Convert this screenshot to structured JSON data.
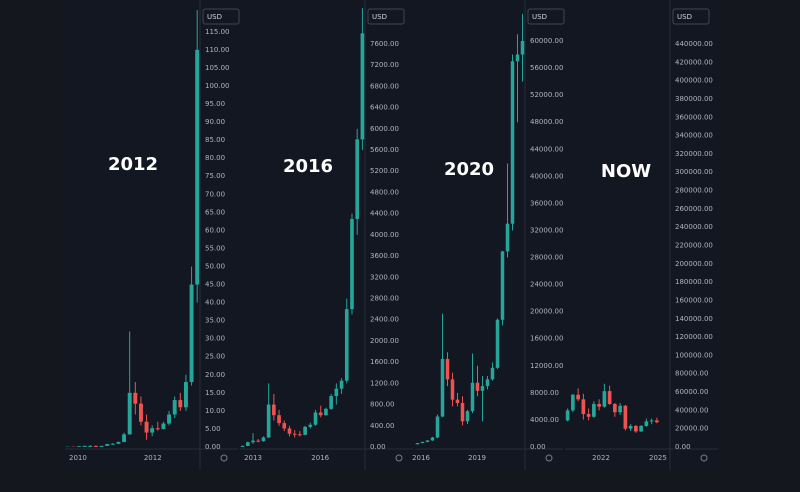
{
  "chart_data": [
    {
      "type": "candlestick",
      "title": "2012",
      "currency": "USD",
      "up_color": "#26a69a",
      "down_color": "#ef5350",
      "categories": [
        null,
        null,
        null,
        null,
        null,
        null,
        null,
        null,
        null,
        null,
        null,
        null,
        null,
        null,
        null,
        null,
        null,
        null,
        null,
        null,
        null,
        null,
        null,
        null
      ],
      "open": [
        0.06,
        0.08,
        0.07,
        0.2,
        0.3,
        0.3,
        0.25,
        0.3,
        0.8,
        0.9,
        1.4,
        3.5,
        15,
        12,
        7,
        4,
        5.2,
        5,
        6.5,
        9,
        13,
        11,
        18,
        45
      ],
      "high": [
        0.1,
        0.1,
        0.3,
        0.4,
        0.5,
        0.4,
        0.35,
        0.9,
        1.1,
        1.5,
        4,
        32,
        18,
        14,
        9,
        6,
        7,
        7,
        10,
        14,
        15,
        20,
        50,
        121
      ],
      "low": [
        0.05,
        0.06,
        0.06,
        0.1,
        0.2,
        0.2,
        0.2,
        0.3,
        0.7,
        0.8,
        1.3,
        3.4,
        9,
        6,
        2,
        3,
        4.5,
        4.8,
        6,
        8,
        10,
        10,
        17,
        40
      ],
      "close": [
        0.08,
        0.07,
        0.2,
        0.3,
        0.3,
        0.25,
        0.3,
        0.8,
        0.9,
        1.4,
        3.5,
        15,
        12,
        7,
        4,
        5.2,
        5,
        6.5,
        9,
        13,
        11,
        18,
        45,
        110
      ],
      "ylim": [
        0,
        121.6
      ],
      "yticks": [
        {
          "value": 0,
          "label": "0.00"
        },
        {
          "value": 5,
          "label": "5.00"
        },
        {
          "value": 10,
          "label": "10.00"
        },
        {
          "value": 15,
          "label": "15.00"
        },
        {
          "value": 20,
          "label": "20.00"
        },
        {
          "value": 25,
          "label": "25.00"
        },
        {
          "value": 30,
          "label": "30.00"
        },
        {
          "value": 35,
          "label": "35.00"
        },
        {
          "value": 40,
          "label": "40.00"
        },
        {
          "value": 45,
          "label": "45.00"
        },
        {
          "value": 50,
          "label": "50.00"
        },
        {
          "value": 55,
          "label": "55.00"
        },
        {
          "value": 60,
          "label": "60.00"
        },
        {
          "value": 65,
          "label": "65.00"
        },
        {
          "value": 70,
          "label": "70.00"
        },
        {
          "value": 75,
          "label": "75.00"
        },
        {
          "value": 80,
          "label": "80.00"
        },
        {
          "value": 85,
          "label": "85.00"
        },
        {
          "value": 90,
          "label": "90.00"
        },
        {
          "value": 95,
          "label": "95.00"
        },
        {
          "value": 100,
          "label": "100.00"
        },
        {
          "value": 105,
          "label": "105.00"
        },
        {
          "value": 110,
          "label": "110.00"
        },
        {
          "value": 115,
          "label": "115.00"
        }
      ],
      "xticks": [
        {
          "value": 1.8,
          "label": "2010"
        },
        {
          "value": 15.1,
          "label": "2012"
        }
      ]
    },
    {
      "type": "candlestick",
      "title": "2016",
      "currency": "USD",
      "up_color": "#26a69a",
      "down_color": "#ef5350",
      "categories": [
        null,
        null,
        null,
        null,
        null,
        null,
        null,
        null,
        null,
        null,
        null,
        null,
        null,
        null,
        null,
        null,
        null,
        null,
        null,
        null,
        null,
        null,
        null,
        null
      ],
      "open": [
        13,
        20,
        90,
        120,
        110,
        180,
        800,
        600,
        450,
        350,
        250,
        240,
        230,
        380,
        420,
        650,
        600,
        720,
        960,
        1100,
        1250,
        2600,
        4300,
        5800
      ],
      "high": [
        30,
        100,
        260,
        150,
        200,
        1200,
        1000,
        700,
        500,
        400,
        320,
        300,
        400,
        460,
        700,
        780,
        740,
        1000,
        1200,
        1300,
        2800,
        4400,
        6000,
        8300
      ],
      "low": [
        12,
        18,
        60,
        90,
        100,
        170,
        500,
        400,
        300,
        200,
        180,
        200,
        220,
        350,
        400,
        560,
        590,
        700,
        800,
        1000,
        1200,
        2500,
        4000,
        5600
      ],
      "close": [
        20,
        90,
        120,
        110,
        180,
        800,
        600,
        450,
        350,
        250,
        240,
        230,
        380,
        420,
        650,
        600,
        720,
        960,
        1100,
        1250,
        2600,
        4300,
        5800,
        7800
      ],
      "ylim": [
        0,
        8278
      ],
      "yticks": [
        {
          "value": 0,
          "label": "0.00"
        },
        {
          "value": 400,
          "label": "400.00"
        },
        {
          "value": 800,
          "label": "800.00"
        },
        {
          "value": 1200,
          "label": "1200.00"
        },
        {
          "value": 1600,
          "label": "1600.00"
        },
        {
          "value": 2000,
          "label": "2000.00"
        },
        {
          "value": 2400,
          "label": "2400.00"
        },
        {
          "value": 2800,
          "label": "2800.00"
        },
        {
          "value": 3200,
          "label": "3200.00"
        },
        {
          "value": 3600,
          "label": "3600.00"
        },
        {
          "value": 4000,
          "label": "4000.00"
        },
        {
          "value": 4400,
          "label": "4400.00"
        },
        {
          "value": 4800,
          "label": "4800.00"
        },
        {
          "value": 5200,
          "label": "5200.00"
        },
        {
          "value": 5600,
          "label": "5600.00"
        },
        {
          "value": 6000,
          "label": "6000.00"
        },
        {
          "value": 6400,
          "label": "6400.00"
        },
        {
          "value": 6800,
          "label": "6800.00"
        },
        {
          "value": 7200,
          "label": "7200.00"
        },
        {
          "value": 7600,
          "label": "7600.00"
        }
      ],
      "xticks": [
        {
          "value": 2.0,
          "label": "2013"
        },
        {
          "value": 14.9,
          "label": "2016"
        }
      ]
    },
    {
      "type": "candlestick",
      "title": "2020",
      "currency": "USD",
      "up_color": "#26a69a",
      "down_color": "#ef5350",
      "categories": [
        null,
        null,
        null,
        null,
        null,
        null,
        null,
        null,
        null,
        null,
        null,
        null,
        null,
        null,
        null,
        null,
        null,
        null,
        null,
        null,
        null,
        null
      ],
      "open": [
        400,
        580,
        750,
        970,
        1400,
        4500,
        13000,
        10000,
        7000,
        6500,
        3800,
        5300,
        9500,
        8300,
        9000,
        10000,
        11700,
        18800,
        28900,
        33000,
        57000,
        58000
      ],
      "high": [
        600,
        800,
        1000,
        1500,
        4800,
        19700,
        14000,
        11000,
        8000,
        7500,
        5500,
        13800,
        12000,
        10500,
        10500,
        12500,
        19000,
        29000,
        41900,
        58000,
        61000,
        64000
      ],
      "low": [
        380,
        560,
        700,
        900,
        1300,
        4400,
        9000,
        6000,
        6000,
        3200,
        3400,
        5000,
        7500,
        3800,
        8500,
        9800,
        11500,
        18000,
        28000,
        32000,
        48000,
        54000
      ],
      "close": [
        580,
        750,
        970,
        1400,
        4500,
        13000,
        10000,
        7000,
        6500,
        3800,
        5300,
        9500,
        8300,
        9000,
        10000,
        11700,
        18800,
        28900,
        33000,
        57000,
        58000,
        60000
      ],
      "ylim": [
        0,
        64877
      ],
      "yticks": [
        {
          "value": 0,
          "label": "0.00"
        },
        {
          "value": 4000,
          "label": "4000.00"
        },
        {
          "value": 8000,
          "label": "8000.00"
        },
        {
          "value": 12000,
          "label": "12000.00"
        },
        {
          "value": 16000,
          "label": "16000.00"
        },
        {
          "value": 20000,
          "label": "20000.00"
        },
        {
          "value": 24000,
          "label": "24000.00"
        },
        {
          "value": 28000,
          "label": "28000.00"
        },
        {
          "value": 32000,
          "label": "32000.00"
        },
        {
          "value": 36000,
          "label": "36000.00"
        },
        {
          "value": 40000,
          "label": "40000.00"
        },
        {
          "value": 44000,
          "label": "44000.00"
        },
        {
          "value": 48000,
          "label": "48000.00"
        },
        {
          "value": 52000,
          "label": "52000.00"
        },
        {
          "value": 56000,
          "label": "56000.00"
        },
        {
          "value": 60000,
          "label": "60000.00"
        }
      ],
      "xticks": [
        {
          "value": 0.7,
          "label": "2016"
        },
        {
          "value": 11.9,
          "label": "2019"
        }
      ]
    },
    {
      "type": "candlestick",
      "title": "NOW",
      "currency": "USD",
      "up_color": "#26a69a",
      "down_color": "#ef5350",
      "categories": [
        null,
        null,
        null,
        null,
        null,
        null,
        null,
        null,
        null,
        null,
        null,
        null,
        null,
        null,
        null,
        null,
        null,
        null,
        null,
        null
      ],
      "open": [
        29000,
        40000,
        57000,
        52000,
        36000,
        33000,
        47000,
        44000,
        61000,
        47000,
        38000,
        45000,
        20000,
        23000,
        17000,
        23000,
        28000,
        29000,
        null,
        null
      ],
      "high": [
        42000,
        58000,
        64000,
        58000,
        42000,
        50000,
        52000,
        69000,
        67000,
        48000,
        48000,
        46000,
        25000,
        24000,
        24000,
        31000,
        31000,
        32000,
        null,
        null
      ],
      "low": [
        28000,
        38000,
        50000,
        30000,
        29000,
        32000,
        40000,
        43000,
        46000,
        33000,
        35000,
        18000,
        17500,
        15500,
        16500,
        22000,
        25000,
        26000,
        null,
        null
      ],
      "close": [
        40000,
        57000,
        52000,
        36000,
        33000,
        47000,
        44000,
        61000,
        47000,
        38000,
        45000,
        20000,
        23000,
        17000,
        23000,
        28000,
        29000,
        27000,
        null,
        null
      ],
      "ylim": [
        0,
        479305
      ],
      "yticks": [
        {
          "value": 0,
          "label": "0.00"
        },
        {
          "value": 20000,
          "label": "20000.00"
        },
        {
          "value": 40000,
          "label": "40000.00"
        },
        {
          "value": 60000,
          "label": "60000.00"
        },
        {
          "value": 80000,
          "label": "80000.00"
        },
        {
          "value": 100000,
          "label": "100000.00"
        },
        {
          "value": 120000,
          "label": "120000.00"
        },
        {
          "value": 140000,
          "label": "140000.00"
        },
        {
          "value": 160000,
          "label": "160000.00"
        },
        {
          "value": 180000,
          "label": "180000.00"
        },
        {
          "value": 200000,
          "label": "200000.00"
        },
        {
          "value": 220000,
          "label": "220000.00"
        },
        {
          "value": 240000,
          "label": "240000.00"
        },
        {
          "value": 260000,
          "label": "260000.00"
        },
        {
          "value": 280000,
          "label": "280000.00"
        },
        {
          "value": 300000,
          "label": "300000.00"
        },
        {
          "value": 320000,
          "label": "320000.00"
        },
        {
          "value": 340000,
          "label": "340000.00"
        },
        {
          "value": 360000,
          "label": "360000.00"
        },
        {
          "value": 380000,
          "label": "380000.00"
        },
        {
          "value": 400000,
          "label": "400000.00"
        },
        {
          "value": 420000,
          "label": "420000.00"
        },
        {
          "value": 440000,
          "label": "440000.00"
        }
      ],
      "xticks": [
        {
          "value": 6.36,
          "label": "2022"
        },
        {
          "value": 17.2,
          "label": "2025"
        }
      ]
    }
  ]
}
